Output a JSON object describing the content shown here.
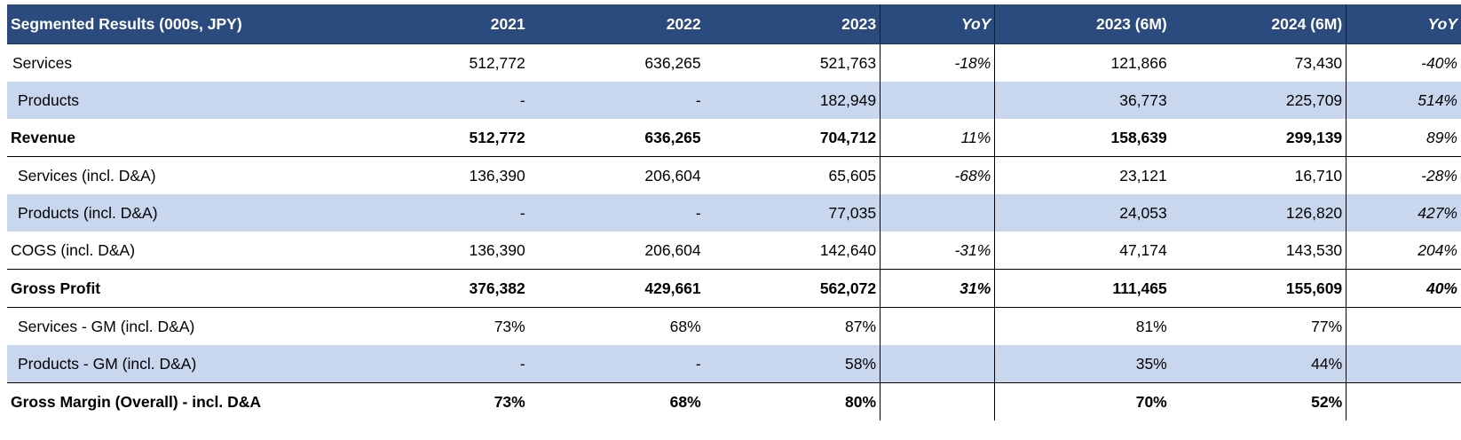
{
  "header": {
    "title": "Segmented Results (000s, JPY)",
    "columns": [
      "2021",
      "2022",
      "2023",
      "YoY",
      "2023 (6M)",
      "2024 (6M)",
      "YoY"
    ]
  },
  "rows": [
    {
      "label": "Services",
      "values": [
        "512,772",
        "636,265",
        "521,763",
        "-18%",
        "121,866",
        "73,430",
        "-40%"
      ]
    },
    {
      "label": "Products",
      "values": [
        "-",
        "-",
        "182,949",
        "",
        "36,773",
        "225,709",
        "514%"
      ]
    },
    {
      "label": "Revenue",
      "values": [
        "512,772",
        "636,265",
        "704,712",
        "11%",
        "158,639",
        "299,139",
        "89%"
      ]
    },
    {
      "label": "Services (incl. D&A)",
      "values": [
        "136,390",
        "206,604",
        "65,605",
        "-68%",
        "23,121",
        "16,710",
        "-28%"
      ]
    },
    {
      "label": "Products (incl. D&A)",
      "values": [
        "-",
        "-",
        "77,035",
        "",
        "24,053",
        "126,820",
        "427%"
      ]
    },
    {
      "label": "COGS (incl. D&A)",
      "values": [
        "136,390",
        "206,604",
        "142,640",
        "-31%",
        "47,174",
        "143,530",
        "204%"
      ]
    },
    {
      "label": "Gross Profit",
      "values": [
        "376,382",
        "429,661",
        "562,072",
        "31%",
        "111,465",
        "155,609",
        "40%"
      ]
    },
    {
      "label": "Services - GM (incl. D&A)",
      "values": [
        "73%",
        "68%",
        "87%",
        "",
        "81%",
        "77%",
        ""
      ]
    },
    {
      "label": "Products - GM (incl. D&A)",
      "values": [
        "-",
        "-",
        "58%",
        "",
        "35%",
        "44%",
        ""
      ]
    },
    {
      "label": "Gross Margin (Overall) - incl. D&A",
      "values": [
        "73%",
        "68%",
        "80%",
        "",
        "70%",
        "52%",
        ""
      ]
    }
  ]
}
